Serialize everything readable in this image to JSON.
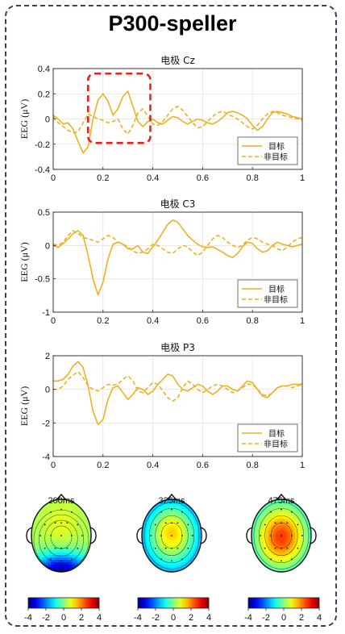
{
  "figure": {
    "title": "P300-speller"
  },
  "colors": {
    "series": "#EDB120",
    "grid": "#e3e3e3",
    "highlight": "#e52222",
    "frame": "#3a4150"
  },
  "chart_data": [
    {
      "type": "line",
      "title": "电极 Cz",
      "ylabel": "EEG (μV)",
      "xlim": [
        0,
        1
      ],
      "ylim": [
        -0.4,
        0.4
      ],
      "xticks": [
        0,
        0.2,
        0.4,
        0.6,
        0.8,
        1
      ],
      "yticks": [
        -0.4,
        -0.2,
        0,
        0.2,
        0.4
      ],
      "grid": true,
      "legend_position": "bottom-right",
      "highlight_box": {
        "x": [
          0.14,
          0.39
        ],
        "y": [
          -0.19,
          0.36
        ]
      },
      "series": [
        {
          "name": "目标",
          "style": "solid",
          "x": [
            0,
            0.02,
            0.04,
            0.06,
            0.08,
            0.1,
            0.12,
            0.14,
            0.16,
            0.18,
            0.2,
            0.22,
            0.24,
            0.26,
            0.28,
            0.3,
            0.32,
            0.34,
            0.36,
            0.38,
            0.4,
            0.42,
            0.44,
            0.46,
            0.48,
            0.5,
            0.52,
            0.54,
            0.56,
            0.58,
            0.6,
            0.62,
            0.64,
            0.66,
            0.68,
            0.7,
            0.72,
            0.74,
            0.76,
            0.78,
            0.8,
            0.82,
            0.84,
            0.86,
            0.88,
            0.9,
            0.92,
            0.94,
            0.96,
            0.98,
            1
          ],
          "y": [
            0.03,
            0.0,
            -0.04,
            -0.03,
            -0.08,
            -0.18,
            -0.27,
            -0.22,
            0.0,
            0.15,
            0.2,
            0.14,
            0.03,
            0.08,
            0.18,
            0.22,
            0.1,
            -0.02,
            -0.06,
            -0.02,
            0.0,
            -0.03,
            -0.04,
            -0.01,
            0.02,
            0.01,
            -0.02,
            -0.04,
            -0.02,
            0.0,
            -0.01,
            -0.03,
            -0.04,
            -0.02,
            0.01,
            0.05,
            0.06,
            0.05,
            0.03,
            0.0,
            -0.05,
            -0.09,
            -0.06,
            0.0,
            0.05,
            0.06,
            0.05,
            0.04,
            0.02,
            0.01,
            0.0
          ]
        },
        {
          "name": "非目标",
          "style": "dashed",
          "x": [
            0,
            0.02,
            0.04,
            0.06,
            0.08,
            0.1,
            0.12,
            0.14,
            0.16,
            0.18,
            0.2,
            0.22,
            0.24,
            0.26,
            0.28,
            0.3,
            0.32,
            0.34,
            0.36,
            0.38,
            0.4,
            0.42,
            0.44,
            0.46,
            0.48,
            0.5,
            0.52,
            0.54,
            0.56,
            0.58,
            0.6,
            0.62,
            0.64,
            0.66,
            0.68,
            0.7,
            0.72,
            0.74,
            0.76,
            0.78,
            0.8,
            0.82,
            0.84,
            0.86,
            0.88,
            0.9,
            0.92,
            0.94,
            0.96,
            0.98,
            1
          ],
          "y": [
            0.02,
            -0.03,
            -0.06,
            -0.09,
            -0.11,
            -0.1,
            -0.03,
            0.04,
            0.02,
            0.0,
            -0.01,
            -0.03,
            -0.02,
            0.0,
            -0.08,
            -0.12,
            -0.05,
            0.05,
            0.08,
            0.02,
            -0.04,
            -0.05,
            -0.02,
            0.03,
            0.08,
            0.1,
            0.07,
            0.02,
            -0.03,
            -0.07,
            -0.06,
            -0.02,
            0.02,
            0.05,
            0.06,
            0.04,
            0.02,
            0.0,
            -0.03,
            -0.06,
            -0.08,
            -0.05,
            0.0,
            0.04,
            0.06,
            0.05,
            0.03,
            0.02,
            0.01,
            0.0,
            -0.01
          ]
        }
      ]
    },
    {
      "type": "line",
      "title": "电极 C3",
      "ylabel": "EEG (μV)",
      "xlim": [
        0,
        1
      ],
      "ylim": [
        -1,
        0.5
      ],
      "xticks": [
        0,
        0.2,
        0.4,
        0.6,
        0.8,
        1
      ],
      "yticks": [
        -1,
        -0.5,
        0,
        0.5
      ],
      "grid": true,
      "legend_position": "bottom-right",
      "series": [
        {
          "name": "目标",
          "style": "solid",
          "x": [
            0,
            0.02,
            0.04,
            0.06,
            0.08,
            0.1,
            0.12,
            0.14,
            0.16,
            0.18,
            0.2,
            0.22,
            0.24,
            0.26,
            0.28,
            0.3,
            0.32,
            0.34,
            0.36,
            0.38,
            0.4,
            0.42,
            0.44,
            0.46,
            0.48,
            0.5,
            0.52,
            0.54,
            0.56,
            0.58,
            0.6,
            0.62,
            0.64,
            0.66,
            0.68,
            0.7,
            0.72,
            0.74,
            0.76,
            0.78,
            0.8,
            0.82,
            0.84,
            0.86,
            0.88,
            0.9,
            0.92,
            0.94,
            0.96,
            0.98,
            1
          ],
          "y": [
            0.0,
            -0.03,
            0.03,
            0.1,
            0.18,
            0.22,
            0.15,
            -0.15,
            -0.5,
            -0.74,
            -0.55,
            -0.2,
            0.02,
            0.05,
            0.02,
            -0.05,
            -0.05,
            0.0,
            -0.1,
            -0.12,
            -0.02,
            0.08,
            0.2,
            0.32,
            0.38,
            0.35,
            0.25,
            0.15,
            0.08,
            0.02,
            -0.02,
            -0.03,
            -0.02,
            -0.06,
            -0.1,
            -0.15,
            -0.18,
            -0.12,
            -0.02,
            0.05,
            0.03,
            -0.05,
            -0.1,
            -0.08,
            0.0,
            0.05,
            0.02,
            0.0,
            -0.02,
            0.0,
            0.02
          ]
        },
        {
          "name": "非目标",
          "style": "dashed",
          "x": [
            0,
            0.02,
            0.04,
            0.06,
            0.08,
            0.1,
            0.12,
            0.14,
            0.16,
            0.18,
            0.2,
            0.22,
            0.24,
            0.26,
            0.28,
            0.3,
            0.32,
            0.34,
            0.36,
            0.38,
            0.4,
            0.42,
            0.44,
            0.46,
            0.48,
            0.5,
            0.52,
            0.54,
            0.56,
            0.58,
            0.6,
            0.62,
            0.64,
            0.66,
            0.68,
            0.7,
            0.72,
            0.74,
            0.76,
            0.78,
            0.8,
            0.82,
            0.84,
            0.86,
            0.88,
            0.9,
            0.92,
            0.94,
            0.96,
            0.98,
            1
          ],
          "y": [
            0.02,
            0.0,
            0.05,
            0.15,
            0.22,
            0.18,
            0.12,
            0.1,
            0.08,
            0.05,
            0.1,
            0.15,
            0.12,
            0.05,
            0.02,
            -0.02,
            -0.08,
            -0.12,
            -0.1,
            -0.05,
            0.02,
            0.0,
            -0.05,
            -0.1,
            -0.12,
            -0.05,
            0.0,
            -0.02,
            -0.1,
            -0.15,
            -0.1,
            0.0,
            0.1,
            0.15,
            0.12,
            0.05,
            0.0,
            -0.03,
            0.0,
            0.08,
            0.12,
            0.1,
            0.05,
            0.02,
            0.0,
            -0.05,
            -0.08,
            -0.02,
            0.05,
            0.1,
            0.12
          ]
        }
      ]
    },
    {
      "type": "line",
      "title": "电极 P3",
      "ylabel": "EEG (μV)",
      "xlim": [
        0,
        1
      ],
      "ylim": [
        -4,
        2
      ],
      "xticks": [
        0,
        0.2,
        0.4,
        0.6,
        0.8,
        1
      ],
      "yticks": [
        -4,
        -2,
        0,
        2
      ],
      "grid": true,
      "legend_position": "bottom-right",
      "series": [
        {
          "name": "目标",
          "style": "solid",
          "x": [
            0,
            0.02,
            0.04,
            0.06,
            0.08,
            0.1,
            0.12,
            0.14,
            0.16,
            0.18,
            0.2,
            0.22,
            0.24,
            0.26,
            0.28,
            0.3,
            0.32,
            0.34,
            0.36,
            0.38,
            0.4,
            0.42,
            0.44,
            0.46,
            0.48,
            0.5,
            0.52,
            0.54,
            0.56,
            0.58,
            0.6,
            0.62,
            0.64,
            0.66,
            0.68,
            0.7,
            0.72,
            0.74,
            0.76,
            0.78,
            0.8,
            0.82,
            0.84,
            0.86,
            0.88,
            0.9,
            0.92,
            0.94,
            0.96,
            0.98,
            1
          ],
          "y": [
            0.5,
            0.5,
            0.6,
            0.9,
            1.4,
            1.65,
            1.3,
            0.2,
            -1.3,
            -2.1,
            -1.8,
            -0.6,
            0.1,
            0.2,
            -0.2,
            -0.6,
            -0.3,
            0.1,
            0.0,
            -0.3,
            -0.1,
            0.3,
            0.6,
            0.9,
            0.8,
            0.3,
            0.0,
            -0.1,
            0.1,
            0.3,
            0.2,
            -0.1,
            -0.3,
            -0.1,
            0.2,
            0.2,
            0.0,
            -0.1,
            0.2,
            0.5,
            0.4,
            0.0,
            -0.4,
            -0.5,
            -0.2,
            0.1,
            0.2,
            0.2,
            0.3,
            0.3,
            0.3
          ]
        },
        {
          "name": "非目标",
          "style": "dashed",
          "x": [
            0,
            0.02,
            0.04,
            0.06,
            0.08,
            0.1,
            0.12,
            0.14,
            0.16,
            0.18,
            0.2,
            0.22,
            0.24,
            0.26,
            0.28,
            0.3,
            0.32,
            0.34,
            0.36,
            0.38,
            0.4,
            0.42,
            0.44,
            0.46,
            0.48,
            0.5,
            0.52,
            0.54,
            0.56,
            0.58,
            0.6,
            0.62,
            0.64,
            0.66,
            0.68,
            0.7,
            0.72,
            0.74,
            0.76,
            0.78,
            0.8,
            0.82,
            0.84,
            0.86,
            0.88,
            0.9,
            0.92,
            0.94,
            0.96,
            0.98,
            1
          ],
          "y": [
            0.0,
            0.0,
            0.2,
            0.6,
            0.85,
            1.05,
            0.7,
            0.2,
            0.0,
            -0.1,
            0.1,
            0.3,
            0.25,
            0.3,
            0.6,
            0.8,
            0.5,
            -0.1,
            -0.2,
            0.1,
            0.4,
            0.3,
            -0.1,
            -0.5,
            -0.7,
            -0.5,
            0.1,
            0.5,
            0.3,
            0.0,
            -0.2,
            0.0,
            0.2,
            0.3,
            0.2,
            0.0,
            -0.2,
            -0.1,
            0.1,
            0.3,
            0.3,
            0.0,
            -0.3,
            -0.4,
            -0.2,
            0.1,
            0.2,
            0.2,
            0.1,
            0.2,
            0.3
          ]
        }
      ]
    },
    {
      "type": "heatmap",
      "subtype": "scalp-topography",
      "maps": [
        {
          "label": "200ms",
          "pattern": "posterior-negative"
        },
        {
          "label": "325ms",
          "pattern": "central-positive"
        },
        {
          "label": "475ms",
          "pattern": "central-strong-positive"
        }
      ],
      "colorbar": {
        "range": [
          -4,
          4
        ],
        "ticks": [
          -4,
          -2,
          0,
          2,
          4
        ],
        "colormap": "jet"
      }
    }
  ]
}
